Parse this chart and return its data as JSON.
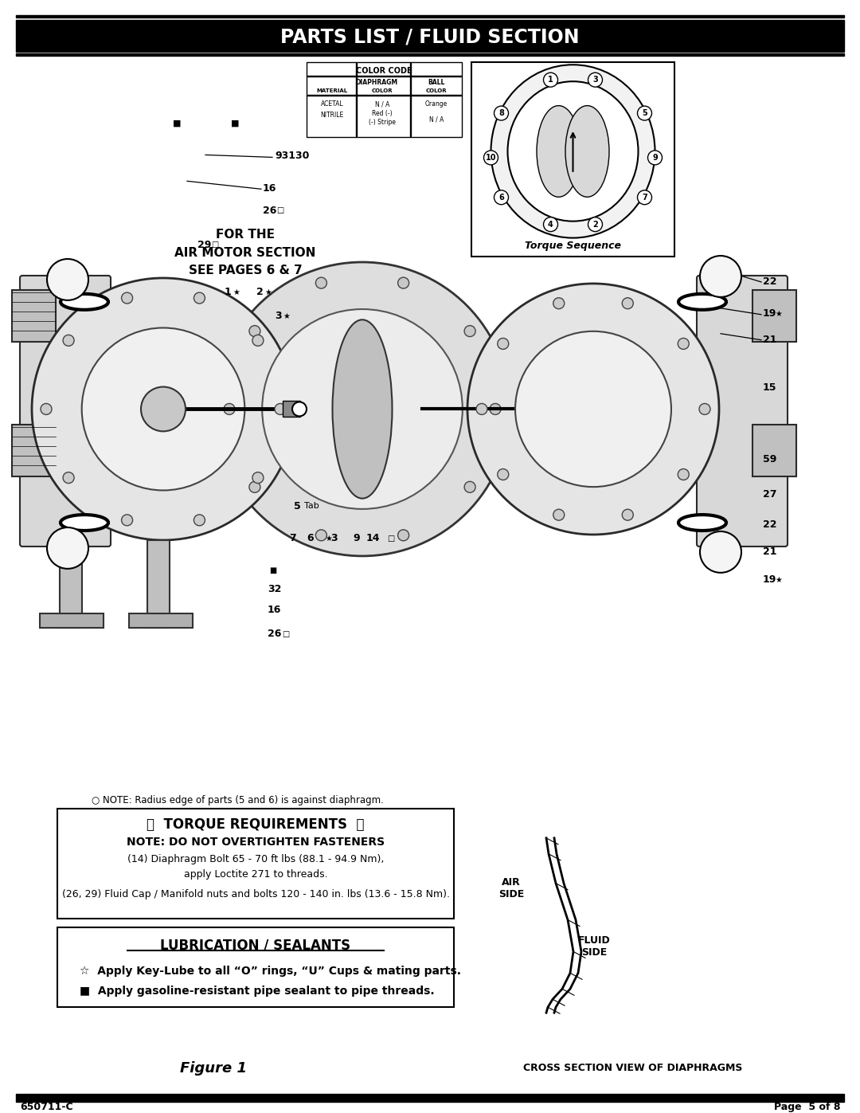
{
  "title": "PARTS LIST / FLUID SECTION",
  "title_bg": "#000000",
  "title_color": "#ffffff",
  "page_bg": "#ffffff",
  "footer_left": "650711-C",
  "footer_right": "Page  5 of 8",
  "footer_bar_color": "#000000",
  "figure_label": "Figure 1",
  "cross_section_label": "CROSS SECTION VIEW OF DIAPHRAGMS",
  "note_text": "○ NOTE: Radius edge of parts (5 and 6) is against diaphragm.",
  "torque_box_title": "ᵳ  TORQUE REQUIREMENTS  ᵳ",
  "torque_line1": "NOTE: DO NOT OVERTIGHTEN FASTENERS",
  "torque_line2": "(14) Diaphragm Bolt 65 - 70 ft lbs (88.1 - 94.9 Nm),",
  "torque_line3": "apply Loctite 271 to threads.",
  "torque_line4": "(26, 29) Fluid Cap / Manifold nuts and bolts 120 - 140 in. lbs (13.6 - 15.8 Nm).",
  "lube_box_title": "LUBRICATION / SEALANTS",
  "lube_line1": "☆  Apply Key-Lube to all “O” rings, “U” Cups & mating parts.",
  "lube_line2": "■  Apply gasoline-resistant pipe sealant to pipe threads.",
  "for_air_motor": "FOR THE\nAIR MOTOR SECTION\nSEE PAGES 6 & 7",
  "color_code_title": "COLOR CODE",
  "torque_seq_label": "Torque Sequence",
  "air_side_label": "AIR\nSIDE",
  "fluid_side_label": "FLUID\nSIDE"
}
